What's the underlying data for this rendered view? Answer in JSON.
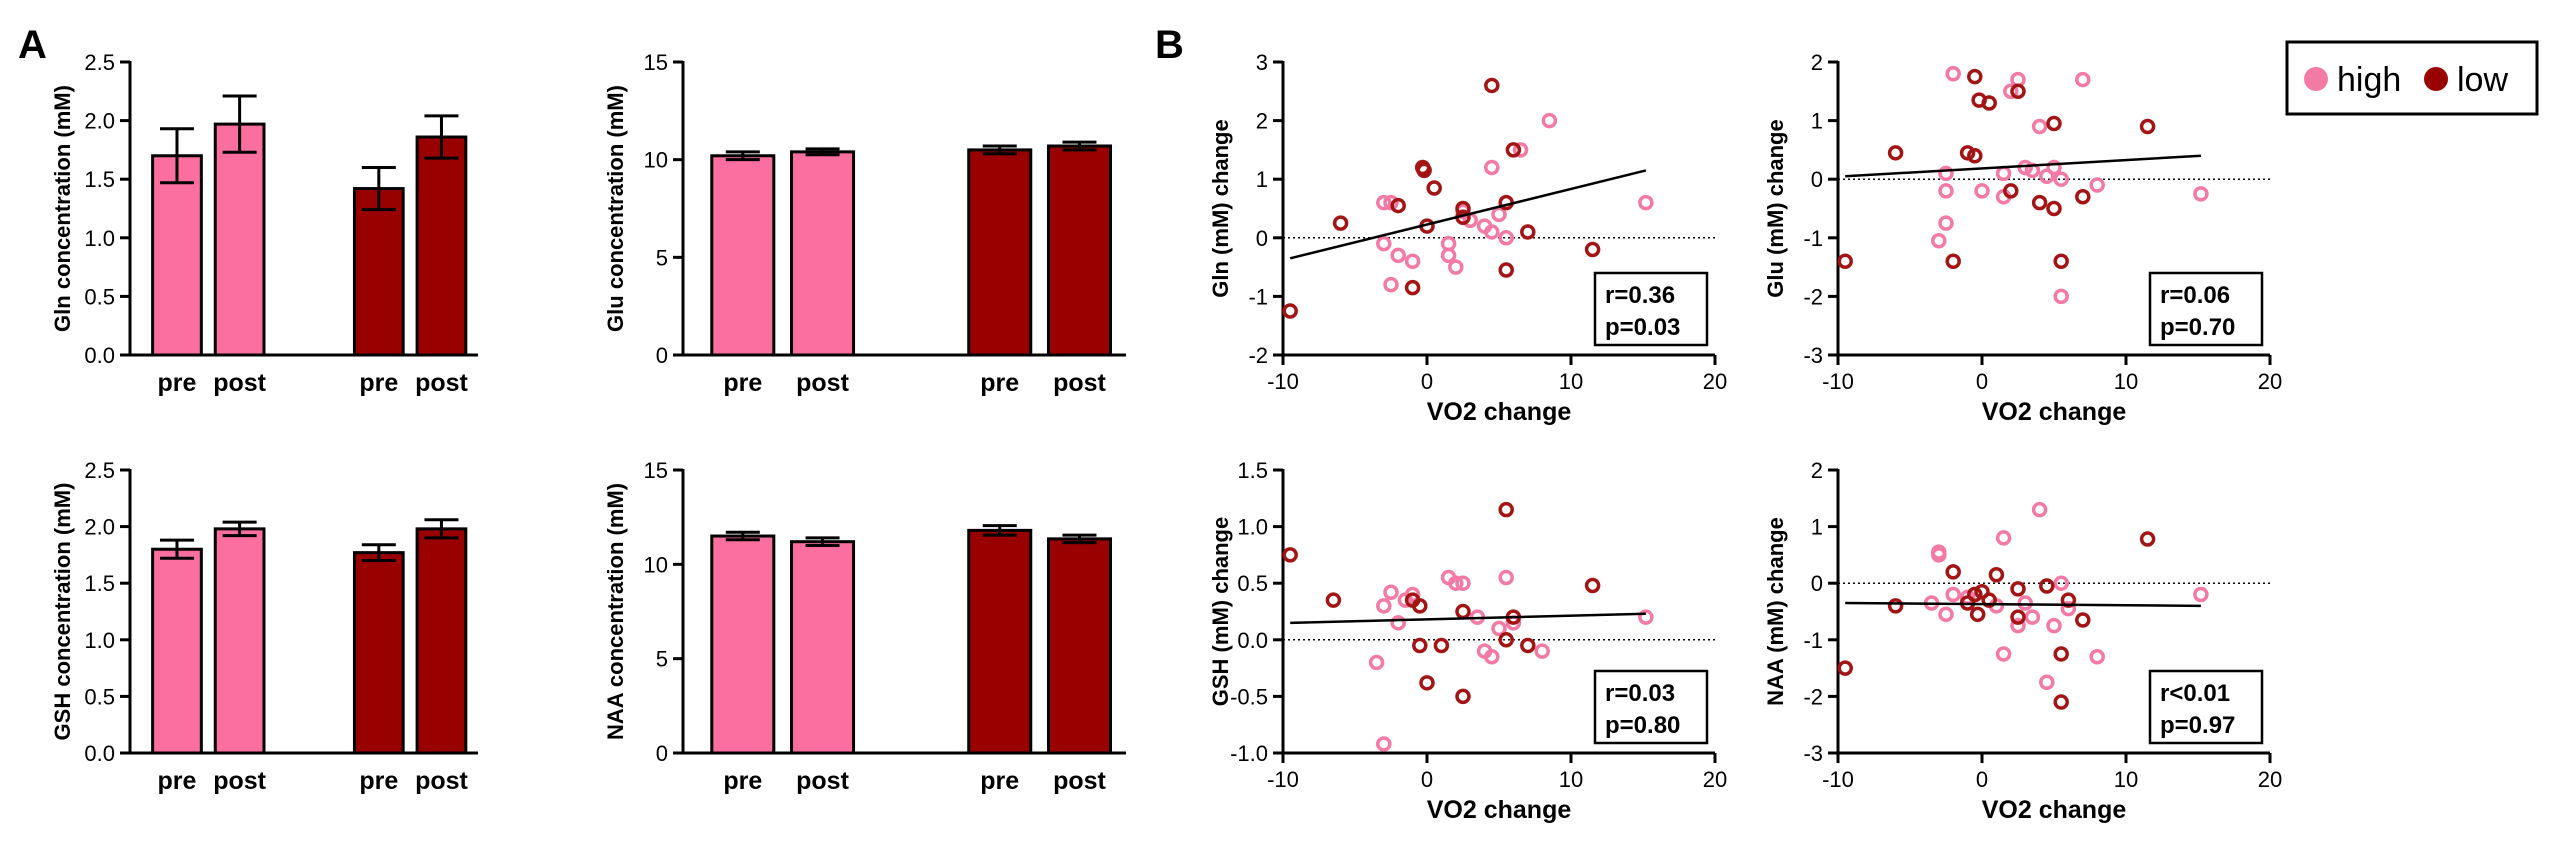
{
  "panels": {
    "a": "A",
    "b": "B"
  },
  "legend": {
    "items": [
      {
        "label": "high",
        "color": "#f37aa4"
      },
      {
        "label": "low",
        "color": "#990000"
      }
    ]
  },
  "colors": {
    "high_bar": "#fa6fa0",
    "low_bar": "#990000",
    "high_marker": "#f37aa4",
    "low_marker": "#a31515"
  },
  "chart_data": [
    {
      "id": "gln-bar",
      "type": "bar",
      "ylabel": "Gln concentration (mM)",
      "categories": [
        "pre",
        "post",
        "pre",
        "post"
      ],
      "groups": [
        "high",
        "high",
        "low",
        "low"
      ],
      "values": [
        1.7,
        1.97,
        1.42,
        1.86
      ],
      "errors": [
        0.23,
        0.24,
        0.18,
        0.18
      ],
      "ylim": [
        0,
        2.5
      ],
      "yticks": [
        "0.0",
        "0.5",
        "1.0",
        "1.5",
        "2.0",
        "2.5"
      ]
    },
    {
      "id": "glu-bar",
      "type": "bar",
      "ylabel": "Glu concentration (mM)",
      "categories": [
        "pre",
        "post",
        "pre",
        "post"
      ],
      "groups": [
        "high",
        "high",
        "low",
        "low"
      ],
      "values": [
        10.2,
        10.4,
        10.5,
        10.7
      ],
      "errors": [
        0.2,
        0.15,
        0.2,
        0.2
      ],
      "ylim": [
        0,
        15
      ],
      "yticks": [
        "0",
        "5",
        "10",
        "15"
      ]
    },
    {
      "id": "gsh-bar",
      "type": "bar",
      "ylabel": "GSH concentration (mM)",
      "categories": [
        "pre",
        "post",
        "pre",
        "post"
      ],
      "groups": [
        "high",
        "high",
        "low",
        "low"
      ],
      "values": [
        1.8,
        1.98,
        1.77,
        1.98
      ],
      "errors": [
        0.08,
        0.06,
        0.07,
        0.08
      ],
      "ylim": [
        0,
        2.5
      ],
      "yticks": [
        "0.0",
        "0.5",
        "1.0",
        "1.5",
        "2.0",
        "2.5"
      ]
    },
    {
      "id": "naa-bar",
      "type": "bar",
      "ylabel": "NAA concentration (mM)",
      "categories": [
        "pre",
        "post",
        "pre",
        "post"
      ],
      "groups": [
        "high",
        "high",
        "low",
        "low"
      ],
      "values": [
        11.5,
        11.2,
        11.8,
        11.35
      ],
      "errors": [
        0.2,
        0.2,
        0.25,
        0.2
      ],
      "ylim": [
        0,
        15
      ],
      "yticks": [
        "0",
        "5",
        "10",
        "15"
      ]
    },
    {
      "id": "gln-scatter",
      "type": "scatter",
      "xlabel": "VO2 change",
      "ylabel": "Gln (mM) change",
      "xlim": [
        -10,
        20
      ],
      "ylim": [
        -2,
        3
      ],
      "xticks": [
        "-10",
        "0",
        "10",
        "20"
      ],
      "yticks": [
        "-2",
        "-1",
        "0",
        "1",
        "2",
        "3"
      ],
      "stat_r": "r=0.36",
      "stat_p": "p=0.03",
      "fit": {
        "x": [
          -9.5,
          15.2
        ],
        "y": [
          -0.35,
          1.15
        ]
      },
      "series": [
        {
          "name": "high",
          "points": [
            [
              -3,
              0.6
            ],
            [
              -2.5,
              0.6
            ],
            [
              -2,
              -0.3
            ],
            [
              -1,
              -0.4
            ],
            [
              1.5,
              -0.1
            ],
            [
              1.5,
              -0.3
            ],
            [
              2,
              -0.5
            ],
            [
              2.5,
              0.45
            ],
            [
              3,
              0.3
            ],
            [
              4,
              0.2
            ],
            [
              4.5,
              0.1
            ],
            [
              5,
              0.4
            ],
            [
              4.5,
              1.2
            ],
            [
              5.5,
              0
            ],
            [
              6.5,
              1.5
            ],
            [
              8.5,
              2.0
            ],
            [
              15.2,
              0.6
            ],
            [
              -3,
              -0.1
            ],
            [
              -2.5,
              -0.8
            ]
          ]
        },
        {
          "name": "low",
          "points": [
            [
              -9.5,
              -1.25
            ],
            [
              -6,
              0.25
            ],
            [
              -2,
              0.55
            ],
            [
              -1,
              -0.85
            ],
            [
              -0.3,
              1.2
            ],
            [
              -0.2,
              1.15
            ],
            [
              0,
              0.2
            ],
            [
              0.5,
              0.85
            ],
            [
              2.5,
              0.5
            ],
            [
              2.5,
              0.35
            ],
            [
              4.5,
              2.6
            ],
            [
              5.5,
              -0.55
            ],
            [
              5.5,
              0.6
            ],
            [
              6,
              1.5
            ],
            [
              7,
              0.1
            ],
            [
              11.5,
              -0.2
            ]
          ]
        }
      ]
    },
    {
      "id": "glu-scatter",
      "type": "scatter",
      "xlabel": "VO2 change",
      "ylabel": "Glu (mM) change",
      "xlim": [
        -10,
        20
      ],
      "ylim": [
        -3,
        2
      ],
      "xticks": [
        "-10",
        "0",
        "10",
        "20"
      ],
      "yticks": [
        "-3",
        "-2",
        "-1",
        "0",
        "1",
        "2"
      ],
      "stat_r": "r=0.06",
      "stat_p": "p=0.70",
      "fit": {
        "x": [
          -9.5,
          15.2
        ],
        "y": [
          0.05,
          0.4
        ]
      },
      "series": [
        {
          "name": "high",
          "points": [
            [
              -2,
              1.8
            ],
            [
              -2.5,
              0.1
            ],
            [
              -2.5,
              -0.2
            ],
            [
              -3,
              -1.05
            ],
            [
              -2.5,
              -0.75
            ],
            [
              0,
              -0.2
            ],
            [
              1.5,
              -0.3
            ],
            [
              1.5,
              0.1
            ],
            [
              2,
              1.5
            ],
            [
              2.5,
              1.7
            ],
            [
              3,
              0.2
            ],
            [
              3.5,
              0.15
            ],
            [
              4,
              0.9
            ],
            [
              4.5,
              0.05
            ],
            [
              5,
              0.2
            ],
            [
              5.5,
              0
            ],
            [
              5.5,
              -2.0
            ],
            [
              7,
              1.7
            ],
            [
              8,
              -0.1
            ],
            [
              15.2,
              -0.25
            ]
          ]
        },
        {
          "name": "low",
          "points": [
            [
              -9.5,
              -1.4
            ],
            [
              -6,
              0.45
            ],
            [
              -2,
              -1.4
            ],
            [
              -1,
              0.45
            ],
            [
              -0.5,
              0.4
            ],
            [
              -0.5,
              1.75
            ],
            [
              -0.2,
              1.35
            ],
            [
              0.5,
              1.3
            ],
            [
              2,
              -0.2
            ],
            [
              2.5,
              1.5
            ],
            [
              4,
              -0.4
            ],
            [
              5,
              0.95
            ],
            [
              5,
              -0.5
            ],
            [
              5.5,
              -1.4
            ],
            [
              7,
              -0.3
            ],
            [
              11.5,
              0.9
            ]
          ]
        }
      ]
    },
    {
      "id": "gsh-scatter",
      "type": "scatter",
      "xlabel": "VO2 change",
      "ylabel": "GSH (mM) change",
      "xlim": [
        -10,
        20
      ],
      "ylim": [
        -1.0,
        1.5
      ],
      "xticks": [
        "-10",
        "0",
        "10",
        "20"
      ],
      "yticks": [
        "-1.0",
        "-0.5",
        "0.0",
        "0.5",
        "1.0",
        "1.5"
      ],
      "stat_r": "r=0.03",
      "stat_p": "p=0.80",
      "fit": {
        "x": [
          -9.5,
          15.2
        ],
        "y": [
          0.15,
          0.23
        ]
      },
      "series": [
        {
          "name": "high",
          "points": [
            [
              -3.5,
              -0.2
            ],
            [
              -3,
              0.3
            ],
            [
              -2.5,
              0.42
            ],
            [
              -2,
              0.15
            ],
            [
              -1.5,
              0.35
            ],
            [
              -1,
              0.4
            ],
            [
              1.5,
              0.55
            ],
            [
              2,
              0.5
            ],
            [
              2.5,
              0.5
            ],
            [
              3.5,
              0.2
            ],
            [
              4,
              -0.1
            ],
            [
              4.5,
              -0.15
            ],
            [
              5,
              0.1
            ],
            [
              5.5,
              0.55
            ],
            [
              6,
              0.15
            ],
            [
              8,
              -0.1
            ],
            [
              15.2,
              0.2
            ],
            [
              -3,
              -0.92
            ]
          ]
        },
        {
          "name": "low",
          "points": [
            [
              -9.5,
              0.75
            ],
            [
              -6.5,
              0.35
            ],
            [
              -1,
              0.35
            ],
            [
              -0.5,
              -0.05
            ],
            [
              -0.5,
              0.3
            ],
            [
              0,
              -0.38
            ],
            [
              1,
              -0.05
            ],
            [
              2.5,
              0.25
            ],
            [
              2.5,
              -0.5
            ],
            [
              5.5,
              1.15
            ],
            [
              5.5,
              0
            ],
            [
              6,
              0.2
            ],
            [
              7,
              -0.05
            ],
            [
              11.5,
              0.48
            ]
          ]
        }
      ]
    },
    {
      "id": "naa-scatter",
      "type": "scatter",
      "xlabel": "VO2 change",
      "ylabel": "NAA (mM) change",
      "xlim": [
        -10,
        20
      ],
      "ylim": [
        -3,
        2
      ],
      "xticks": [
        "-10",
        "0",
        "10",
        "20"
      ],
      "yticks": [
        "-3",
        "-2",
        "-1",
        "0",
        "1",
        "2"
      ],
      "stat_r": "r<0.01",
      "stat_p": "p=0.97",
      "fit": {
        "x": [
          -9.5,
          15.2
        ],
        "y": [
          -0.35,
          -0.4
        ]
      },
      "series": [
        {
          "name": "high",
          "points": [
            [
              -3.5,
              -0.35
            ],
            [
              -3,
              0.55
            ],
            [
              -3,
              0.5
            ],
            [
              -2.5,
              -0.55
            ],
            [
              -2,
              -0.2
            ],
            [
              -1,
              -0.25
            ],
            [
              -0.5,
              -0.2
            ],
            [
              1,
              -0.4
            ],
            [
              1.5,
              0.8
            ],
            [
              1.5,
              -1.25
            ],
            [
              2.5,
              -0.75
            ],
            [
              3,
              -0.35
            ],
            [
              3.5,
              -0.6
            ],
            [
              4,
              1.3
            ],
            [
              4.5,
              -1.75
            ],
            [
              5,
              -0.75
            ],
            [
              5.5,
              0
            ],
            [
              6,
              -0.45
            ],
            [
              8,
              -1.3
            ],
            [
              15.2,
              -0.2
            ]
          ]
        },
        {
          "name": "low",
          "points": [
            [
              -9.5,
              -1.5
            ],
            [
              -6,
              -0.4
            ],
            [
              -2,
              0.2
            ],
            [
              -1,
              -0.35
            ],
            [
              -0.5,
              -0.2
            ],
            [
              -0.3,
              -0.55
            ],
            [
              0,
              -0.15
            ],
            [
              0.5,
              -0.3
            ],
            [
              1,
              0.15
            ],
            [
              2.5,
              -0.1
            ],
            [
              2.5,
              -0.6
            ],
            [
              4.5,
              -0.05
            ],
            [
              5.5,
              -1.25
            ],
            [
              5.5,
              -2.1
            ],
            [
              6,
              -0.3
            ],
            [
              7,
              -0.65
            ],
            [
              11.5,
              0.78
            ]
          ]
        }
      ]
    }
  ]
}
